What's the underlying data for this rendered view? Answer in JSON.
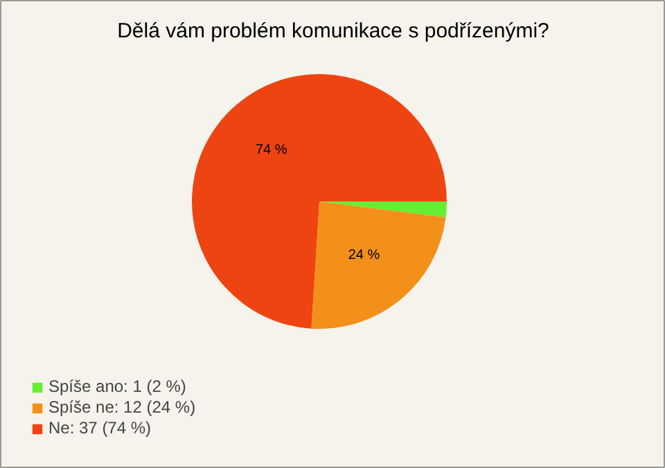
{
  "chart_data": {
    "type": "pie",
    "title": "Dělá vám problém komunikace s podřízenými?",
    "categories": [
      "Spíše ano: 1 (2 %)",
      "Spíše ne: 12 (24 %)",
      "Ne: 37 (74 %)"
    ],
    "values": [
      2,
      24,
      74
    ],
    "colors": [
      "#66ee33",
      "#f39019",
      "#ee4411"
    ],
    "value_labels": [
      null,
      "24 %",
      "74 %"
    ],
    "legend": "bottom left"
  }
}
